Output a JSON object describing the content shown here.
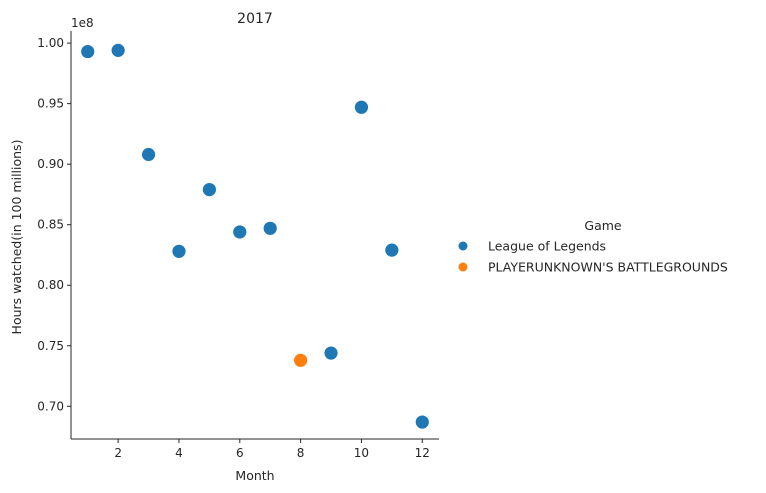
{
  "chart_data": {
    "type": "scatter",
    "title": "2017",
    "xlabel": "Month",
    "ylabel": "Hours watched(in 100 millions)",
    "y_offset_label": "1e8",
    "xlim": [
      0.45,
      12.55
    ],
    "ylim": [
      0.673,
      1.01
    ],
    "x_ticks": [
      2,
      4,
      6,
      8,
      10,
      12
    ],
    "x_tick_labels": [
      "2",
      "4",
      "6",
      "8",
      "10",
      "12"
    ],
    "y_ticks": [
      0.7,
      0.75,
      0.8,
      0.85,
      0.9,
      0.95,
      1.0
    ],
    "y_tick_labels": [
      "0.70",
      "0.75",
      "0.80",
      "0.85",
      "0.90",
      "0.95",
      "1.00"
    ],
    "grid": false,
    "legend_title": "Game",
    "legend_position": "right",
    "series": [
      {
        "name": "League of Legends",
        "color": "#1f77b4",
        "x": [
          1,
          2,
          3,
          4,
          5,
          6,
          7,
          9,
          10,
          11,
          12
        ],
        "y": [
          0.993,
          0.994,
          0.908,
          0.828,
          0.879,
          0.844,
          0.847,
          0.744,
          0.947,
          0.829,
          0.687
        ]
      },
      {
        "name": "PLAYERUNKNOWN'S BATTLEGROUNDS",
        "color": "#ff7f0e",
        "x": [
          8
        ],
        "y": [
          0.738
        ]
      }
    ]
  }
}
